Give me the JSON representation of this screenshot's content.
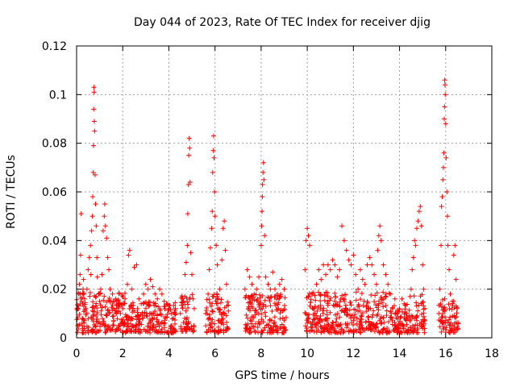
{
  "chart_data": {
    "type": "scatter",
    "title": "Day 044 of 2023, Rate Of TEC Index for receiver djig",
    "xlabel": "GPS time / hours",
    "ylabel": "ROTI / TECUs",
    "xlim": [
      0,
      18
    ],
    "ylim": [
      0,
      0.12
    ],
    "xticks": [
      0,
      2,
      4,
      6,
      8,
      10,
      12,
      14,
      16,
      18
    ],
    "yticks": [
      0,
      0.02,
      0.04,
      0.06,
      0.08,
      0.1,
      0.12
    ],
    "xtick_labels": [
      "0",
      "2",
      "4",
      "6",
      "8",
      "10",
      "12",
      "14",
      "16",
      "18"
    ],
    "ytick_labels": [
      "0",
      "0.02",
      "0.04",
      "0.06",
      "0.08",
      "0.1",
      "0.12"
    ],
    "grid": true,
    "marker": "+",
    "series_color": "#ff0000",
    "series": [
      {
        "name": "ROTI",
        "points": [
          [
            0.05,
            0.005
          ],
          [
            0.08,
            0.012
          ],
          [
            0.1,
            0.018
          ],
          [
            0.12,
            0.022
          ],
          [
            0.15,
            0.026
          ],
          [
            0.17,
            0.034
          ],
          [
            0.2,
            0.051
          ],
          [
            0.22,
            0.015
          ],
          [
            0.25,
            0.008
          ],
          [
            0.28,
            0.02
          ],
          [
            0.3,
            0.024
          ],
          [
            0.35,
            0.016
          ],
          [
            0.4,
            0.012
          ],
          [
            0.45,
            0.02
          ],
          [
            0.5,
            0.028
          ],
          [
            0.55,
            0.033
          ],
          [
            0.6,
            0.038
          ],
          [
            0.62,
            0.026
          ],
          [
            0.65,
            0.044
          ],
          [
            0.68,
            0.05
          ],
          [
            0.7,
            0.058
          ],
          [
            0.72,
            0.068
          ],
          [
            0.73,
            0.079
          ],
          [
            0.74,
            0.094
          ],
          [
            0.75,
            0.103
          ],
          [
            0.76,
            0.101
          ],
          [
            0.77,
            0.089
          ],
          [
            0.78,
            0.085
          ],
          [
            0.8,
            0.067
          ],
          [
            0.82,
            0.055
          ],
          [
            0.85,
            0.046
          ],
          [
            0.88,
            0.033
          ],
          [
            0.9,
            0.025
          ],
          [
            0.95,
            0.018
          ],
          [
            1.0,
            0.015
          ],
          [
            1.05,
            0.02
          ],
          [
            1.1,
            0.026
          ],
          [
            1.15,
            0.044
          ],
          [
            1.2,
            0.05
          ],
          [
            1.22,
            0.055
          ],
          [
            1.25,
            0.046
          ],
          [
            1.3,
            0.041
          ],
          [
            1.35,
            0.033
          ],
          [
            1.4,
            0.028
          ],
          [
            1.45,
            0.02
          ],
          [
            1.5,
            0.015
          ],
          [
            1.6,
            0.012
          ],
          [
            1.7,
            0.016
          ],
          [
            1.8,
            0.014
          ],
          [
            1.9,
            0.01
          ],
          [
            2.0,
            0.012
          ],
          [
            2.1,
            0.016
          ],
          [
            2.2,
            0.022
          ],
          [
            2.25,
            0.034
          ],
          [
            2.3,
            0.036
          ],
          [
            2.4,
            0.02
          ],
          [
            2.5,
            0.029
          ],
          [
            2.6,
            0.03
          ],
          [
            2.7,
            0.016
          ],
          [
            2.8,
            0.014
          ],
          [
            2.9,
            0.018
          ],
          [
            3.0,
            0.022
          ],
          [
            3.1,
            0.02
          ],
          [
            3.2,
            0.024
          ],
          [
            3.3,
            0.021
          ],
          [
            3.4,
            0.018
          ],
          [
            3.5,
            0.016
          ],
          [
            3.6,
            0.02
          ],
          [
            3.7,
            0.018
          ],
          [
            3.8,
            0.015
          ],
          [
            3.9,
            0.014
          ],
          [
            4.0,
            0.012
          ],
          [
            4.1,
            0.01
          ],
          [
            4.2,
            0.008
          ],
          [
            4.5,
            0.01
          ],
          [
            4.6,
            0.016
          ],
          [
            4.7,
            0.026
          ],
          [
            4.75,
            0.031
          ],
          [
            4.8,
            0.038
          ],
          [
            4.82,
            0.051
          ],
          [
            4.85,
            0.063
          ],
          [
            4.86,
            0.075
          ],
          [
            4.88,
            0.082
          ],
          [
            4.9,
            0.078
          ],
          [
            4.92,
            0.064
          ],
          [
            4.95,
            0.035
          ],
          [
            5.0,
            0.026
          ],
          [
            5.05,
            0.016
          ],
          [
            5.1,
            0.012
          ],
          [
            5.6,
            0.01
          ],
          [
            5.7,
            0.018
          ],
          [
            5.75,
            0.028
          ],
          [
            5.8,
            0.037
          ],
          [
            5.85,
            0.045
          ],
          [
            5.88,
            0.052
          ],
          [
            5.9,
            0.068
          ],
          [
            5.92,
            0.077
          ],
          [
            5.94,
            0.083
          ],
          [
            5.96,
            0.074
          ],
          [
            5.98,
            0.06
          ],
          [
            6.0,
            0.05
          ],
          [
            6.05,
            0.038
          ],
          [
            6.1,
            0.03
          ],
          [
            6.2,
            0.02
          ],
          [
            6.3,
            0.032
          ],
          [
            6.35,
            0.045
          ],
          [
            6.4,
            0.048
          ],
          [
            6.45,
            0.036
          ],
          [
            6.5,
            0.022
          ],
          [
            7.3,
            0.02
          ],
          [
            7.4,
            0.028
          ],
          [
            7.5,
            0.025
          ],
          [
            7.6,
            0.022
          ],
          [
            7.7,
            0.018
          ],
          [
            7.8,
            0.02
          ],
          [
            7.9,
            0.025
          ],
          [
            8.0,
            0.038
          ],
          [
            8.02,
            0.046
          ],
          [
            8.04,
            0.052
          ],
          [
            8.05,
            0.058
          ],
          [
            8.06,
            0.063
          ],
          [
            8.08,
            0.068
          ],
          [
            8.1,
            0.072
          ],
          [
            8.12,
            0.065
          ],
          [
            8.15,
            0.042
          ],
          [
            8.2,
            0.025
          ],
          [
            8.3,
            0.022
          ],
          [
            8.4,
            0.02
          ],
          [
            8.5,
            0.027
          ],
          [
            8.6,
            0.02
          ],
          [
            8.7,
            0.018
          ],
          [
            8.8,
            0.022
          ],
          [
            8.9,
            0.024
          ],
          [
            9.0,
            0.02
          ],
          [
            9.9,
            0.028
          ],
          [
            9.95,
            0.04
          ],
          [
            10.0,
            0.045
          ],
          [
            10.05,
            0.042
          ],
          [
            10.1,
            0.038
          ],
          [
            10.2,
            0.018
          ],
          [
            10.3,
            0.012
          ],
          [
            10.4,
            0.022
          ],
          [
            10.5,
            0.028
          ],
          [
            10.6,
            0.024
          ],
          [
            10.7,
            0.03
          ],
          [
            10.8,
            0.026
          ],
          [
            10.9,
            0.03
          ],
          [
            11.0,
            0.028
          ],
          [
            11.1,
            0.032
          ],
          [
            11.2,
            0.03
          ],
          [
            11.3,
            0.025
          ],
          [
            11.4,
            0.028
          ],
          [
            11.5,
            0.046
          ],
          [
            11.6,
            0.04
          ],
          [
            11.7,
            0.036
          ],
          [
            11.8,
            0.032
          ],
          [
            11.9,
            0.03
          ],
          [
            12.0,
            0.034
          ],
          [
            12.1,
            0.026
          ],
          [
            12.2,
            0.02
          ],
          [
            12.3,
            0.028
          ],
          [
            12.4,
            0.024
          ],
          [
            12.5,
            0.022
          ],
          [
            12.6,
            0.03
          ],
          [
            12.7,
            0.033
          ],
          [
            12.8,
            0.03
          ],
          [
            12.9,
            0.026
          ],
          [
            13.0,
            0.022
          ],
          [
            13.05,
            0.036
          ],
          [
            13.1,
            0.042
          ],
          [
            13.15,
            0.046
          ],
          [
            13.2,
            0.04
          ],
          [
            13.3,
            0.03
          ],
          [
            13.4,
            0.026
          ],
          [
            13.5,
            0.022
          ],
          [
            13.6,
            0.018
          ],
          [
            13.7,
            0.012
          ],
          [
            13.8,
            0.016
          ],
          [
            13.9,
            0.01
          ],
          [
            14.0,
            0.012
          ],
          [
            14.1,
            0.016
          ],
          [
            14.2,
            0.014
          ],
          [
            14.3,
            0.01
          ],
          [
            14.5,
            0.02
          ],
          [
            14.55,
            0.028
          ],
          [
            14.6,
            0.033
          ],
          [
            14.65,
            0.04
          ],
          [
            14.7,
            0.038
          ],
          [
            14.75,
            0.045
          ],
          [
            14.8,
            0.048
          ],
          [
            14.85,
            0.052
          ],
          [
            14.9,
            0.054
          ],
          [
            14.95,
            0.046
          ],
          [
            15.0,
            0.03
          ],
          [
            15.05,
            0.02
          ],
          [
            15.1,
            0.012
          ],
          [
            15.7,
            0.01
          ],
          [
            15.75,
            0.02
          ],
          [
            15.8,
            0.038
          ],
          [
            15.82,
            0.054
          ],
          [
            15.85,
            0.058
          ],
          [
            15.88,
            0.065
          ],
          [
            15.9,
            0.07
          ],
          [
            15.92,
            0.076
          ],
          [
            15.94,
            0.09
          ],
          [
            15.95,
            0.095
          ],
          [
            15.96,
            0.106
          ],
          [
            15.97,
            0.104
          ],
          [
            15.98,
            0.1
          ],
          [
            16.0,
            0.088
          ],
          [
            16.02,
            0.074
          ],
          [
            16.05,
            0.06
          ],
          [
            16.08,
            0.05
          ],
          [
            16.1,
            0.038
          ],
          [
            16.15,
            0.028
          ],
          [
            16.2,
            0.018
          ],
          [
            16.3,
            0.014
          ],
          [
            16.35,
            0.034
          ],
          [
            16.4,
            0.038
          ],
          [
            16.45,
            0.024
          ],
          [
            16.5,
            0.012
          ]
        ]
      }
    ],
    "band_clusters": [
      [
        0.0,
        2.1,
        0.017
      ],
      [
        2.1,
        4.3,
        0.013
      ],
      [
        4.5,
        5.1,
        0.016
      ],
      [
        5.6,
        6.6,
        0.017
      ],
      [
        7.3,
        9.1,
        0.016
      ],
      [
        9.9,
        12.6,
        0.017
      ],
      [
        12.6,
        13.6,
        0.017
      ],
      [
        13.6,
        14.4,
        0.012
      ],
      [
        14.4,
        15.1,
        0.016
      ],
      [
        15.7,
        16.55,
        0.014
      ]
    ]
  }
}
